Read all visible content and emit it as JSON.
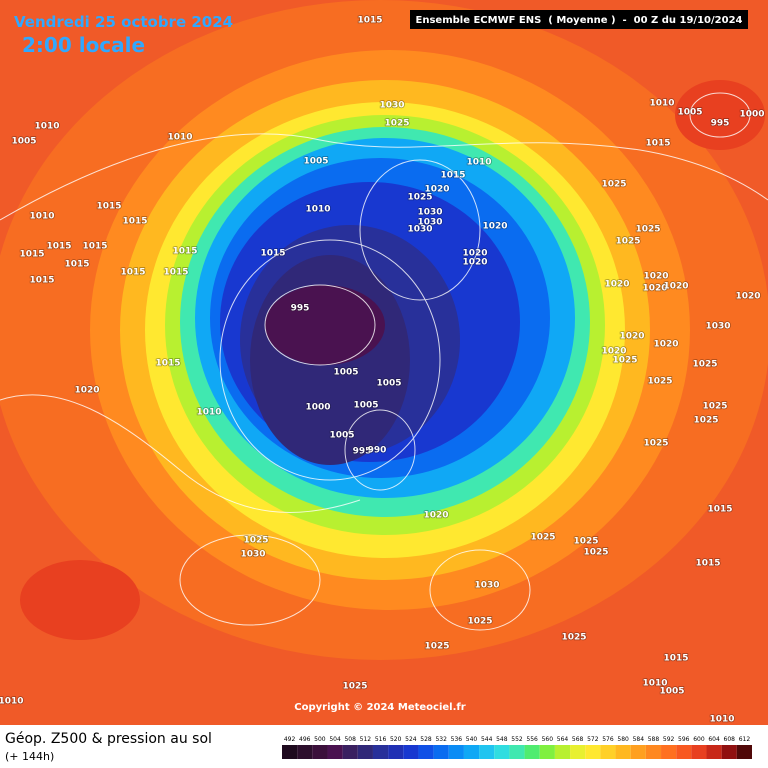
{
  "header": {
    "date": "Vendredi 25 octobre 2024",
    "time": "2:00 locale",
    "model": "Ensemble ECMWF ENS  ( Moyenne )  -  00 Z du 19/10/2024"
  },
  "copyright": "Copyright © 2024 Meteociel.fr",
  "legend": {
    "title": "Géop. Z500 & pression au sol",
    "subtitle": "(+ 144h)",
    "scale": [
      492,
      496,
      500,
      504,
      508,
      512,
      516,
      520,
      524,
      528,
      532,
      536,
      540,
      544,
      548,
      552,
      556,
      560,
      564,
      568,
      572,
      576,
      580,
      584,
      588,
      592,
      596,
      600,
      604,
      608,
      612
    ]
  },
  "isobar_labels": [
    "1015",
    "1010",
    "1005",
    "1010",
    "1030",
    "1025",
    "1005",
    "1010",
    "1015",
    "1010",
    "1005",
    "995",
    "1000",
    "1015",
    "1020",
    "1025",
    "1030",
    "1010",
    "1015",
    "1010",
    "1015",
    "1030",
    "1030",
    "1020",
    "1025",
    "1025",
    "1015",
    "1015",
    "1015",
    "1015",
    "1020",
    "1020",
    "1025",
    "1015",
    "1015",
    "1015",
    "1015",
    "1015",
    "995",
    "1020",
    "1020",
    "1020",
    "1020",
    "1020",
    "1030",
    "1020",
    "1020",
    "1020",
    "1025",
    "1025",
    "1015",
    "1005",
    "1005",
    "1020",
    "1025",
    "1005",
    "1000",
    "1010",
    "1025",
    "1025",
    "1005",
    "995",
    "990",
    "1025",
    "1015",
    "1020",
    "1025",
    "1025",
    "1025",
    "1025",
    "1030",
    "1015",
    "1030",
    "1025",
    "1025",
    "1025",
    "1015",
    "1025",
    "1010",
    "1010",
    "1010",
    "1005"
  ]
}
